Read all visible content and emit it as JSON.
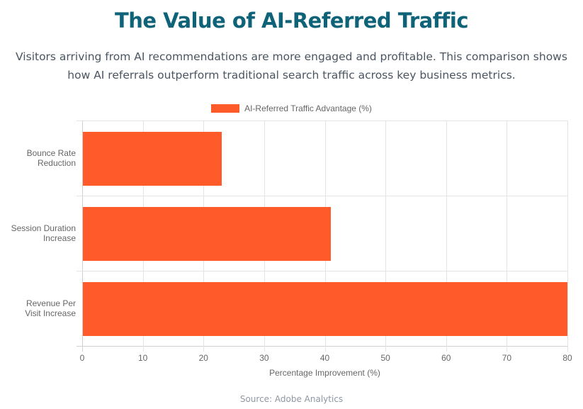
{
  "header": {
    "title": "The Value of AI-Referred Traffic",
    "subtitle": "Visitors arriving from AI recommendations are more engaged and profitable. This comparison shows how AI referrals outperform traditional search traffic across key business metrics."
  },
  "legend": {
    "label": "AI-Referred Traffic Advantage (%)",
    "color": "#ff5a2a"
  },
  "axis": {
    "xlabel": "Percentage Improvement (%)",
    "ticks": [
      "0",
      "10",
      "20",
      "30",
      "40",
      "50",
      "60",
      "70",
      "80"
    ]
  },
  "categories": [
    {
      "line1": "Bounce Rate",
      "line2": "Reduction"
    },
    {
      "line1": "Session Duration",
      "line2": "Increase"
    },
    {
      "line1": "Revenue Per",
      "line2": "Visit Increase"
    }
  ],
  "footer": {
    "source": "Source: Adobe Analytics"
  },
  "chart_data": {
    "type": "bar",
    "orientation": "horizontal",
    "title": "The Value of AI-Referred Traffic",
    "subtitle": "Visitors arriving from AI recommendations are more engaged and profitable. This comparison shows how AI referrals outperform traditional search traffic across key business metrics.",
    "categories": [
      "Bounce Rate Reduction",
      "Session Duration Increase",
      "Revenue Per Visit Increase"
    ],
    "series": [
      {
        "name": "AI-Referred Traffic Advantage (%)",
        "values": [
          23,
          41,
          80
        ],
        "color": "#ff5a2a"
      }
    ],
    "xlabel": "Percentage Improvement (%)",
    "ylabel": "",
    "xlim": [
      0,
      80
    ],
    "xticks": [
      0,
      10,
      20,
      30,
      40,
      50,
      60,
      70,
      80
    ],
    "grid": true,
    "legend_position": "top",
    "source": "Source: Adobe Analytics"
  }
}
